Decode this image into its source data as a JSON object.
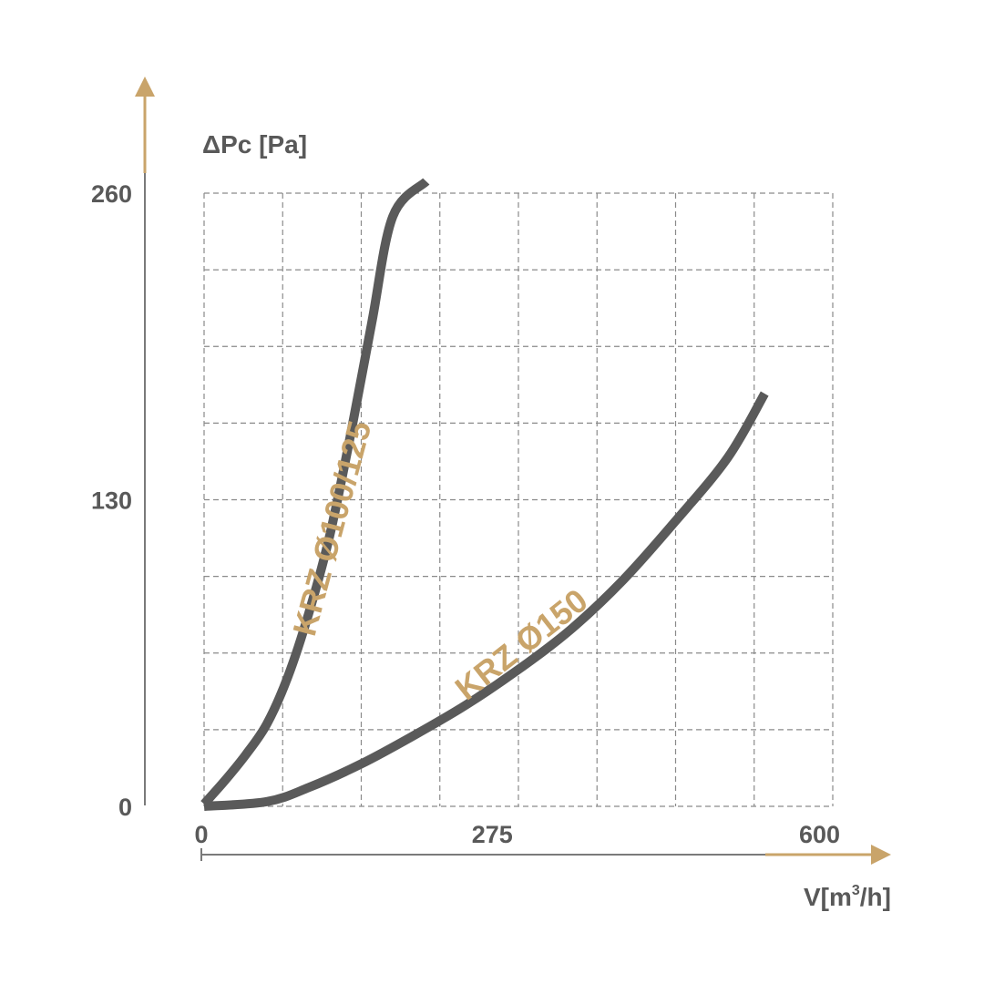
{
  "chart_data": {
    "type": "line",
    "ylabel": "ΔPc [Pa]",
    "xlabel_main": "V[m",
    "xlabel_sup": "3",
    "xlabel_tail": "/h]",
    "xlim": [
      0,
      600
    ],
    "ylim": [
      0,
      260
    ],
    "x_ticks": [
      {
        "value": 0,
        "label": "0"
      },
      {
        "value": 275,
        "label": "275"
      },
      {
        "value": 600,
        "label": "600"
      }
    ],
    "y_ticks": [
      {
        "value": 0,
        "label": "0"
      },
      {
        "value": 130,
        "label": "130"
      },
      {
        "value": 260,
        "label": "260"
      }
    ],
    "grid": true,
    "grid_x": [
      0,
      75,
      150,
      225,
      300,
      375,
      450,
      525,
      600
    ],
    "grid_y": [
      0,
      32.5,
      65,
      97.5,
      130,
      162.5,
      195,
      227.5,
      260
    ],
    "series": [
      {
        "name": "KRZ Ø100/125",
        "color": "#5a5a5a",
        "points": [
          [
            0,
            1
          ],
          [
            20,
            11
          ],
          [
            40,
            22
          ],
          [
            60,
            35
          ],
          [
            80,
            55
          ],
          [
            100,
            82
          ],
          [
            120,
            115
          ],
          [
            140,
            158
          ],
          [
            160,
            205
          ],
          [
            180,
            250
          ],
          [
            212,
            265
          ]
        ]
      },
      {
        "name": "KRZ Ø150",
        "color": "#5a5a5a",
        "points": [
          [
            0,
            0
          ],
          [
            60,
            2
          ],
          [
            100,
            8
          ],
          [
            150,
            18
          ],
          [
            200,
            30
          ],
          [
            250,
            43
          ],
          [
            300,
            58
          ],
          [
            350,
            75
          ],
          [
            400,
            96
          ],
          [
            450,
            121
          ],
          [
            500,
            148
          ],
          [
            535,
            175
          ]
        ]
      }
    ],
    "accent_color": "#c9a46a"
  }
}
